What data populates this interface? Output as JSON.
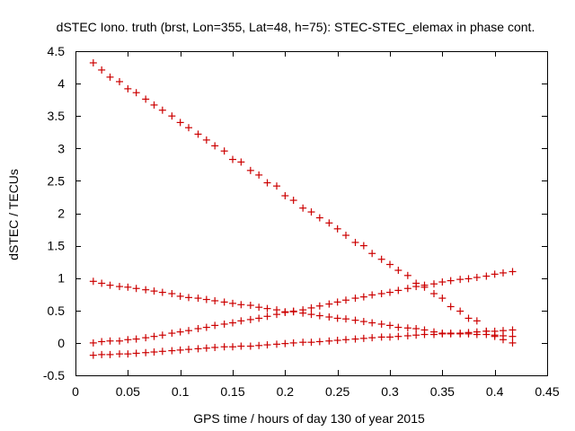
{
  "chart_data": {
    "type": "scatter",
    "title": "dSTEC Iono. truth (brst, Lon=355, Lat=48, h=75): STEC-STEC_elemax in phase cont.",
    "xlabel": "GPS time / hours of day 130 of year 2015",
    "ylabel": "dSTEC  / TECUs",
    "xlim": [
      0,
      0.45
    ],
    "ylim": [
      -0.5,
      4.5
    ],
    "x_ticks": [
      0,
      0.05,
      0.1,
      0.15,
      0.2,
      0.25,
      0.3,
      0.35,
      0.4,
      0.45
    ],
    "x_tick_labels": [
      "0",
      "0.05",
      "0.1",
      "0.15",
      "0.2",
      "0.25",
      "0.3",
      "0.35",
      "0.4",
      "0.45"
    ],
    "y_ticks": [
      -0.5,
      0,
      0.5,
      1,
      1.5,
      2,
      2.5,
      3,
      3.5,
      4,
      4.5
    ],
    "y_tick_labels": [
      "-0.5",
      "0",
      "0.5",
      "1",
      "1.5",
      "2",
      "2.5",
      "3",
      "3.5",
      "4",
      "4.5"
    ],
    "marker": "+",
    "color": "#cc0000",
    "grid": false,
    "series": [
      {
        "x": [
          0.017,
          0.025,
          0.033,
          0.042,
          0.05,
          0.058,
          0.067,
          0.075,
          0.083,
          0.092,
          0.1,
          0.108,
          0.117,
          0.125,
          0.133,
          0.142,
          0.15,
          0.158,
          0.167,
          0.175,
          0.183,
          0.192,
          0.2,
          0.208,
          0.217,
          0.225,
          0.233,
          0.242,
          0.25,
          0.258,
          0.267,
          0.275,
          0.283,
          0.292,
          0.3,
          0.308,
          0.317,
          0.325,
          0.333,
          0.342,
          0.35,
          0.358,
          0.367,
          0.375,
          0.383,
          0.392,
          0.4,
          0.408,
          0.417
        ],
        "y": [
          4.32,
          4.21,
          4.1,
          4.03,
          3.92,
          3.86,
          3.76,
          3.67,
          3.59,
          3.5,
          3.4,
          3.32,
          3.22,
          3.13,
          3.04,
          2.96,
          2.83,
          2.79,
          2.66,
          2.59,
          2.47,
          2.42,
          2.27,
          2.2,
          2.08,
          2.02,
          1.93,
          1.85,
          1.76,
          1.66,
          1.55,
          1.5,
          1.38,
          1.29,
          1.21,
          1.12,
          1.04,
          0.92,
          0.86,
          0.76,
          0.69,
          0.56,
          0.49,
          0.38,
          0.34,
          0.18,
          0.1,
          0.05,
          0.0
        ]
      },
      {
        "x": [
          0.017,
          0.025,
          0.033,
          0.042,
          0.05,
          0.058,
          0.067,
          0.075,
          0.083,
          0.092,
          0.1,
          0.108,
          0.117,
          0.125,
          0.133,
          0.142,
          0.15,
          0.158,
          0.167,
          0.175,
          0.183,
          0.192,
          0.2,
          0.208,
          0.217,
          0.225,
          0.233,
          0.242,
          0.25,
          0.258,
          0.267,
          0.275,
          0.283,
          0.292,
          0.3,
          0.308,
          0.317,
          0.325,
          0.333,
          0.342,
          0.35,
          0.358,
          0.367,
          0.375,
          0.383,
          0.392,
          0.4,
          0.408,
          0.417
        ],
        "y": [
          0.95,
          0.92,
          0.89,
          0.87,
          0.86,
          0.84,
          0.82,
          0.8,
          0.78,
          0.76,
          0.72,
          0.7,
          0.69,
          0.67,
          0.65,
          0.63,
          0.61,
          0.59,
          0.58,
          0.55,
          0.53,
          0.51,
          0.48,
          0.48,
          0.46,
          0.44,
          0.42,
          0.4,
          0.38,
          0.37,
          0.35,
          0.33,
          0.31,
          0.29,
          0.27,
          0.24,
          0.23,
          0.22,
          0.2,
          0.17,
          0.15,
          0.15,
          0.14,
          0.14,
          0.13,
          0.13,
          0.12,
          0.11,
          0.1
        ]
      },
      {
        "x": [
          0.017,
          0.025,
          0.033,
          0.042,
          0.05,
          0.058,
          0.067,
          0.075,
          0.083,
          0.092,
          0.1,
          0.108,
          0.117,
          0.125,
          0.133,
          0.142,
          0.15,
          0.158,
          0.167,
          0.175,
          0.183,
          0.192,
          0.2,
          0.208,
          0.217,
          0.225,
          0.233,
          0.242,
          0.25,
          0.258,
          0.267,
          0.275,
          0.283,
          0.292,
          0.3,
          0.308,
          0.317,
          0.325,
          0.333,
          0.342,
          0.35,
          0.358,
          0.367,
          0.375,
          0.383,
          0.392,
          0.4,
          0.408,
          0.417
        ],
        "y": [
          0.0,
          0.02,
          0.03,
          0.03,
          0.05,
          0.06,
          0.08,
          0.1,
          0.12,
          0.15,
          0.17,
          0.19,
          0.22,
          0.24,
          0.27,
          0.29,
          0.31,
          0.34,
          0.36,
          0.38,
          0.41,
          0.44,
          0.47,
          0.49,
          0.51,
          0.54,
          0.57,
          0.6,
          0.63,
          0.66,
          0.69,
          0.71,
          0.74,
          0.76,
          0.78,
          0.81,
          0.84,
          0.87,
          0.89,
          0.91,
          0.94,
          0.96,
          0.98,
          0.99,
          1.01,
          1.03,
          1.06,
          1.08,
          1.1
        ]
      },
      {
        "x": [
          0.017,
          0.025,
          0.033,
          0.042,
          0.05,
          0.058,
          0.067,
          0.075,
          0.083,
          0.092,
          0.1,
          0.108,
          0.117,
          0.125,
          0.133,
          0.142,
          0.15,
          0.158,
          0.167,
          0.175,
          0.183,
          0.192,
          0.2,
          0.208,
          0.217,
          0.225,
          0.233,
          0.242,
          0.25,
          0.258,
          0.267,
          0.275,
          0.283,
          0.292,
          0.3,
          0.308,
          0.317,
          0.325,
          0.333,
          0.342,
          0.35,
          0.358,
          0.367,
          0.375,
          0.383,
          0.392,
          0.4,
          0.408,
          0.417
        ],
        "y": [
          -0.19,
          -0.18,
          -0.18,
          -0.17,
          -0.17,
          -0.16,
          -0.15,
          -0.14,
          -0.13,
          -0.12,
          -0.11,
          -0.1,
          -0.09,
          -0.08,
          -0.07,
          -0.06,
          -0.06,
          -0.05,
          -0.05,
          -0.04,
          -0.03,
          -0.02,
          -0.01,
          0.0,
          0.01,
          0.01,
          0.02,
          0.03,
          0.04,
          0.05,
          0.06,
          0.07,
          0.08,
          0.09,
          0.09,
          0.1,
          0.11,
          0.12,
          0.13,
          0.13,
          0.14,
          0.14,
          0.15,
          0.16,
          0.17,
          0.18,
          0.18,
          0.19,
          0.2
        ]
      }
    ]
  }
}
